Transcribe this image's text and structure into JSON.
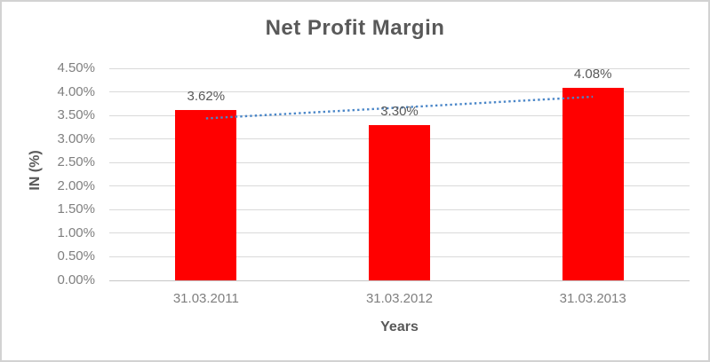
{
  "chart_data": {
    "type": "bar",
    "title": "Net Profit Margin",
    "xlabel": "Years",
    "ylabel": "IN (%)",
    "categories": [
      "31.03.2011",
      "31.03.2012",
      "31.03.2013"
    ],
    "values": [
      3.62,
      3.3,
      4.08
    ],
    "data_labels": [
      "3.62%",
      "3.30%",
      "4.08%"
    ],
    "ylim": [
      0,
      4.5
    ],
    "ytick_step": 0.5,
    "ytick_labels": [
      "0.00%",
      "0.50%",
      "1.00%",
      "1.50%",
      "2.00%",
      "2.50%",
      "3.00%",
      "3.50%",
      "4.00%",
      "4.50%"
    ],
    "grid": true,
    "legend": false,
    "bar_color": "#ff0000",
    "trendline": {
      "type": "linear",
      "style": "dotted",
      "color": "#4a86c8",
      "start_value": 3.437,
      "end_value": 3.897
    },
    "colors": {
      "title_text": "#595959",
      "axis_title_text": "#595959",
      "tick_text": "#7f7f7f",
      "data_label_text": "#595959",
      "gridline": "#d9d9d9",
      "axis_line": "#c6c6c6",
      "chart_border": "#d2d2d2",
      "background": "#ffffff"
    }
  }
}
